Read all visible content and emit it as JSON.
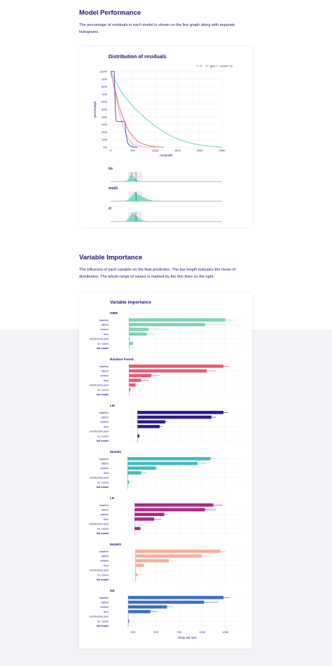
{
  "perf": {
    "title": "Model Performance",
    "desc": "The percentage of residuals in each model is shown on the line graph along with separate histograms."
  },
  "vi": {
    "title": "Variable Importance",
    "desc": "The influence of each variable on the final prediction. The bar length indicates the mean of distribution. The whole range of values is marked by the thin lines on the right."
  },
  "chart_data": [
    {
      "type": "line",
      "title": "Distribution of residuals",
      "xlabel": "residuals",
      "ylabel": "percentage",
      "xlim": [
        0,
        2500
      ],
      "ylim": [
        0,
        100
      ],
      "xticks": [
        0,
        500,
        1000,
        1500,
        2000,
        2500
      ],
      "yticks": [
        "0%",
        "10%",
        "20%",
        "30%",
        "40%",
        "50%",
        "60%",
        "70%",
        "80%",
        "90%",
        "100%"
      ],
      "grid": true,
      "legend_position": "top-right",
      "series": [
        {
          "name": "rf",
          "color": "#e8a8a0",
          "x": [
            0,
            50,
            100,
            150,
            200,
            250,
            300,
            350,
            400,
            450,
            500,
            600,
            700,
            800,
            900,
            1000
          ],
          "y": [
            100,
            88,
            72,
            57,
            45,
            33,
            24,
            17,
            11,
            7,
            4,
            2,
            1,
            0.5,
            0.2,
            0
          ]
        },
        {
          "name": "gbm",
          "color": "#ea5b73",
          "x": [
            0,
            100,
            200,
            300,
            400,
            500,
            600,
            700,
            800,
            900,
            1000,
            1100,
            1200
          ],
          "y": [
            100,
            75,
            52,
            35,
            22,
            14,
            8,
            5,
            3,
            1.5,
            0.8,
            0.3,
            0
          ]
        },
        {
          "name": "mod",
          "color": "#57d3b4",
          "x": [
            0,
            100,
            200,
            300,
            400,
            500,
            600,
            800,
            1000,
            1200,
            1400,
            1600,
            1800,
            2000,
            2200,
            2500
          ],
          "y": [
            100,
            88,
            77,
            68,
            61,
            54,
            48,
            37,
            28,
            20,
            13.5,
            9,
            5.5,
            3,
            1.5,
            0
          ]
        },
        {
          "name": "lm",
          "color": "#3d3fb8",
          "x": [
            0,
            80,
            90,
            100,
            110,
            120,
            140,
            160,
            200,
            250,
            300,
            320,
            330,
            350,
            380,
            420,
            500,
            600
          ],
          "y": [
            100,
            100,
            82,
            58,
            42,
            36,
            34,
            34,
            34,
            34,
            34,
            33,
            25,
            15,
            6,
            2,
            0.5,
            0
          ]
        }
      ],
      "histograms": [
        {
          "label": "lm",
          "color": "#57d3b4",
          "values": [
            1,
            2,
            5,
            12,
            18,
            10,
            6,
            3,
            1,
            1,
            0,
            0,
            0,
            0,
            0,
            0,
            0,
            0,
            0,
            0
          ]
        },
        {
          "label": "mod1",
          "color": "#57d3b4",
          "values": [
            1,
            2,
            4,
            7,
            10,
            14,
            18,
            16,
            13,
            12,
            10,
            8,
            7,
            5,
            4,
            3,
            2,
            1,
            1,
            1,
            1,
            0,
            0,
            0,
            0
          ]
        },
        {
          "label": "rf",
          "color": "#57d3b4",
          "values": [
            1,
            3,
            6,
            10,
            14,
            16,
            12,
            9,
            7,
            5,
            3,
            2,
            1,
            1,
            0,
            0,
            0,
            0,
            0,
            0
          ]
        }
      ]
    },
    {
      "type": "bar",
      "title": "Variable importance",
      "xlabel": "Drop-out loss",
      "xlim": [
        200,
        1450
      ],
      "xticks": [
        250,
        500,
        750,
        1000,
        1250
      ],
      "categories": [
        "baseline",
        "district",
        "surface",
        "floor",
        "construction.year",
        "no. rooms",
        "full model"
      ],
      "models": [
        {
          "name": "GBM",
          "color": "#7ed3b8",
          "full_model": 210,
          "mean": [
            1250,
            1030,
            420,
            400,
            215,
            250,
            210
          ],
          "max": [
            1340,
            1260,
            620,
            480,
            230,
            260,
            210
          ]
        },
        {
          "name": "Random Forest",
          "color": "#e75b72",
          "full_model": 210,
          "mean": [
            1230,
            1050,
            450,
            340,
            280,
            222,
            210
          ],
          "max": [
            1290,
            1150,
            540,
            420,
            320,
            228,
            210
          ]
        },
        {
          "name": "LM",
          "color": "#2f1a8c",
          "full_model": 300,
          "mean": [
            1230,
            1100,
            600,
            540,
            300,
            320,
            300
          ],
          "max": [
            1280,
            1150,
            620,
            570,
            300,
            320,
            300
          ]
        },
        {
          "name": "Model2",
          "color": "#3dbdc0",
          "full_model": 195,
          "mean": [
            1090,
            950,
            500,
            340,
            195,
            210,
            195
          ],
          "max": [
            1150,
            1050,
            520,
            400,
            195,
            210,
            195
          ]
        },
        {
          "name": "LR",
          "color": "#b02782",
          "full_model": 270,
          "mean": [
            1120,
            1030,
            590,
            480,
            270,
            330,
            270
          ],
          "max": [
            1220,
            1150,
            630,
            560,
            270,
            340,
            270
          ]
        },
        {
          "name": "Model3",
          "color": "#f6b09c",
          "full_model": 280,
          "mean": [
            1200,
            1000,
            640,
            370,
            280,
            300,
            280
          ],
          "max": [
            1250,
            1080,
            720,
            380,
            280,
            350,
            280
          ]
        },
        {
          "name": "M4",
          "color": "#3f6fbd",
          "full_model": 200,
          "mean": [
            1230,
            1020,
            620,
            440,
            200,
            210,
            200
          ],
          "max": [
            1300,
            1180,
            680,
            520,
            200,
            210,
            200
          ]
        }
      ]
    }
  ]
}
